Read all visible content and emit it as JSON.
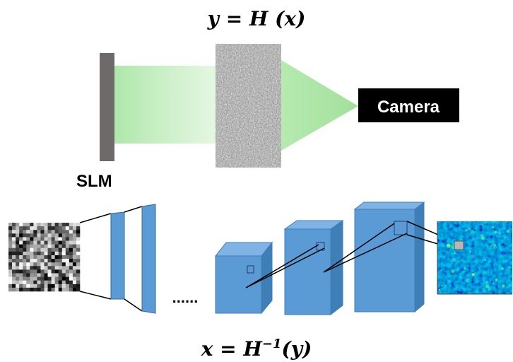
{
  "top_equation": {
    "lhs": "y",
    "eq": " = ",
    "func": "H",
    "arg": " (x)"
  },
  "slm_label": "SLM",
  "camera_label": "Camera",
  "ellipsis": "......",
  "bottom_equation": {
    "lhs": "x",
    "eq": " = ",
    "func": "H",
    "sup": "−1",
    "arg": "(y)"
  },
  "colors": {
    "slm_bar": "#6e6a6a",
    "beam_green": "#a9e6a5",
    "cube_front": "#5b9bd5",
    "cube_top": "#7eb3e3",
    "cube_side": "#3f7fb8",
    "camera_bg": "#000000",
    "heatmap_bg": "#0a1fa8"
  },
  "icons": [
    "slm-panel",
    "scattering-medium",
    "speckle-input",
    "conv-layers",
    "output-heatmap"
  ]
}
